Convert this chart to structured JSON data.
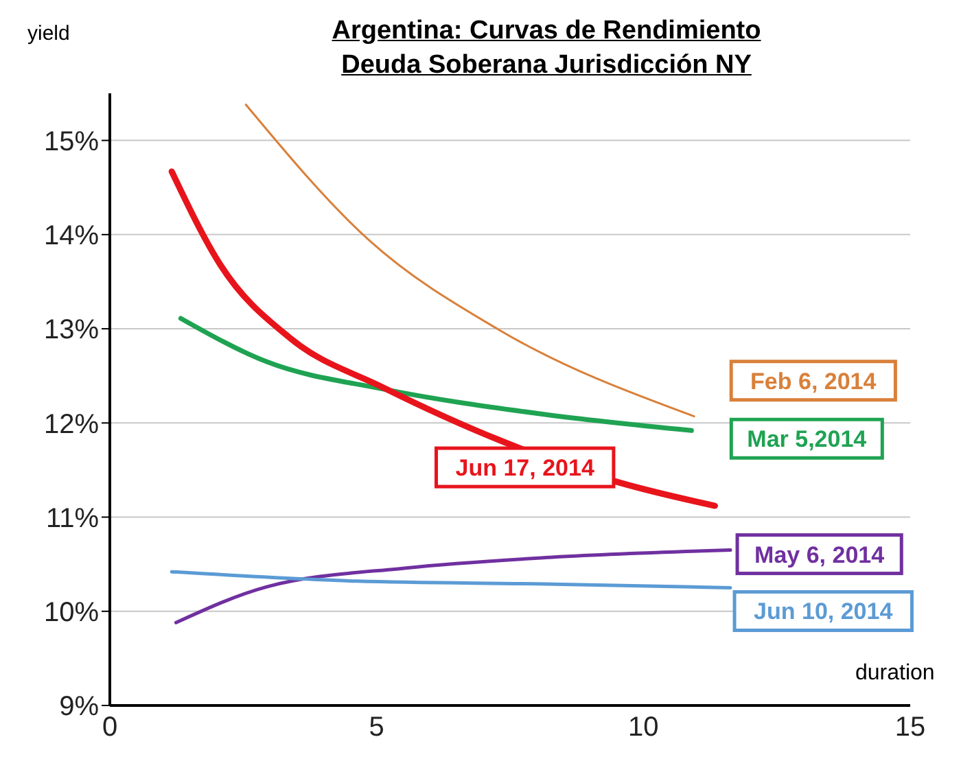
{
  "chart_data": {
    "type": "line",
    "title": "Argentina: Curvas de Rendimiento\nDeuda Soberana Jurisdicción NY",
    "xlabel": "duration",
    "ylabel": "yield",
    "xlim": [
      0,
      15
    ],
    "xticks": [
      0,
      5,
      10,
      15
    ],
    "ylim": [
      9,
      15.5
    ],
    "yticks": [
      {
        "value": 9,
        "label": "9%"
      },
      {
        "value": 10,
        "label": "10%"
      },
      {
        "value": 11,
        "label": "11%"
      },
      {
        "value": 12,
        "label": "12%"
      },
      {
        "value": 13,
        "label": "13%"
      },
      {
        "value": 14,
        "label": "14%"
      },
      {
        "value": 15,
        "label": "15%"
      }
    ],
    "grid": "y",
    "marker": "none",
    "line_style": "solid",
    "series": [
      {
        "name": "Feb 6, 2014",
        "color": "#d9803a",
        "x": [
          2.55,
          4.86,
          7.29,
          10.95
        ],
        "values": [
          15.38,
          13.94,
          12.99,
          12.07
        ]
      },
      {
        "name": "Mar 5,2014",
        "color": "#1fa352",
        "x": [
          1.33,
          2.94,
          5.12,
          8.16,
          10.9
        ],
        "values": [
          13.11,
          12.65,
          12.36,
          12.09,
          11.92
        ]
      },
      {
        "name": "Jun 17, 2014",
        "color": "#e8141c",
        "x": [
          1.16,
          2.07,
          3.38,
          5.11,
          7.29,
          9.47,
          11.34
        ],
        "values": [
          14.67,
          13.68,
          12.9,
          12.38,
          11.82,
          11.38,
          11.12
        ]
      },
      {
        "name": "May 6, 2014",
        "color": "#7030a0",
        "x": [
          1.24,
          2.94,
          5.55,
          8.16,
          11.63
        ],
        "values": [
          9.88,
          10.26,
          10.46,
          10.57,
          10.65
        ]
      },
      {
        "name": "Jun 10, 2014",
        "color": "#5b9bd5",
        "x": [
          1.16,
          4.63,
          8.16,
          11.63
        ],
        "values": [
          10.42,
          10.32,
          10.29,
          10.25
        ]
      }
    ]
  }
}
